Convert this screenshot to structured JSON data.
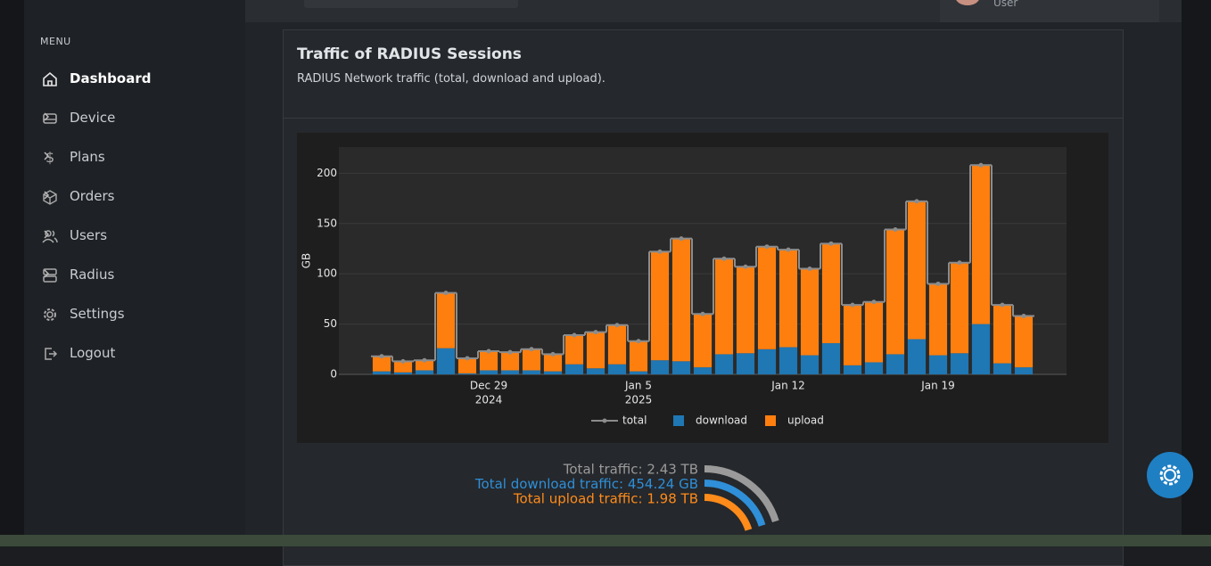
{
  "sidebar": {
    "menu_label": "MENU",
    "items": [
      {
        "label": "Dashboard",
        "has_submenu": false
      },
      {
        "label": "Device",
        "has_submenu": true
      },
      {
        "label": "Plans",
        "has_submenu": true
      },
      {
        "label": "Orders",
        "has_submenu": true
      },
      {
        "label": "Users",
        "has_submenu": true
      },
      {
        "label": "Radius",
        "has_submenu": true
      },
      {
        "label": "Settings",
        "has_submenu": false
      },
      {
        "label": "Logout",
        "has_submenu": false
      }
    ]
  },
  "header": {
    "user_role": "User"
  },
  "card": {
    "title": "Traffic of RADIUS Sessions",
    "subtitle": "RADIUS Network traffic (total, download and upload)."
  },
  "chart_data": {
    "type": "bar",
    "stacked": true,
    "x": [
      "2024-12-24",
      "2024-12-25",
      "2024-12-26",
      "2024-12-27",
      "2024-12-28",
      "2024-12-29",
      "2024-12-30",
      "2024-12-31",
      "2025-01-01",
      "2025-01-02",
      "2025-01-03",
      "2025-01-04",
      "2025-01-05",
      "2025-01-06",
      "2025-01-07",
      "2025-01-08",
      "2025-01-09",
      "2025-01-10",
      "2025-01-11",
      "2025-01-12",
      "2025-01-13",
      "2025-01-14",
      "2025-01-15",
      "2025-01-16",
      "2025-01-17",
      "2025-01-18",
      "2025-01-19",
      "2025-01-20",
      "2025-01-21",
      "2025-01-22",
      "2025-01-23"
    ],
    "series": [
      {
        "name": "total",
        "type": "line",
        "color": "#8c8c8c",
        "values": [
          18,
          13,
          14,
          81,
          16,
          23,
          22,
          25,
          20,
          39,
          42,
          49,
          33,
          122,
          135,
          60,
          115,
          107,
          127,
          124,
          105,
          130,
          69,
          72,
          144,
          172,
          90,
          111,
          208,
          69,
          58
        ]
      },
      {
        "name": "download",
        "type": "bar",
        "color": "#1f77b4",
        "values": [
          3,
          2,
          4,
          26,
          1,
          4,
          4,
          4,
          3,
          10,
          6,
          10,
          3,
          14,
          13,
          7,
          20,
          21,
          25,
          27,
          19,
          31,
          9,
          12,
          20,
          35,
          19,
          21,
          50,
          11,
          7
        ]
      },
      {
        "name": "upload",
        "type": "bar",
        "color": "#ff7f0e",
        "values": [
          15,
          11,
          10,
          55,
          15,
          19,
          18,
          21,
          17,
          29,
          36,
          39,
          30,
          108,
          122,
          53,
          95,
          86,
          102,
          97,
          86,
          99,
          60,
          60,
          124,
          137,
          71,
          90,
          158,
          58,
          51
        ]
      }
    ],
    "xlim": [
      "2024-12-22",
      "2025-01-25"
    ],
    "xticks": [
      {
        "value": "2024-12-29",
        "label": [
          "Dec 29",
          "2024"
        ]
      },
      {
        "value": "2025-01-05",
        "label": [
          "Jan 5",
          "2025"
        ]
      },
      {
        "value": "2025-01-12",
        "label": [
          "Jan 12"
        ]
      },
      {
        "value": "2025-01-19",
        "label": [
          "Jan 19"
        ]
      }
    ],
    "ylabel": "GB",
    "ylim": [
      0,
      226
    ],
    "yticks": [
      0,
      50,
      100,
      150,
      200
    ],
    "grid": true,
    "legend": "bottom"
  },
  "totals": [
    {
      "label": "Total traffic: 2.43 TB",
      "color": "#9a9a9a"
    },
    {
      "label": "Total download traffic: 454.24 GB",
      "color": "#2f8fd8"
    },
    {
      "label": "Total upload traffic: 1.98 TB",
      "color": "#ff8b1a"
    }
  ]
}
